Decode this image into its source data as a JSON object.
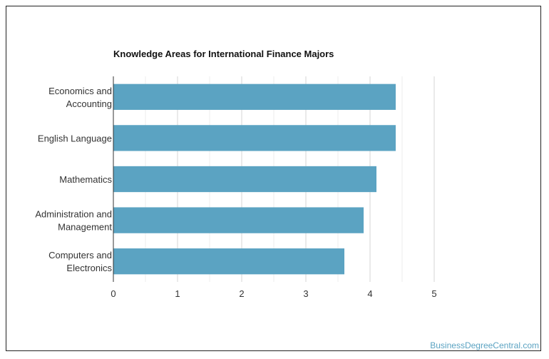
{
  "chart_data": {
    "type": "bar",
    "orientation": "horizontal",
    "title": "Knowledge Areas for International Finance Majors",
    "categories": [
      [
        "Economics and",
        "Accounting"
      ],
      [
        "English Language"
      ],
      [
        "Mathematics"
      ],
      [
        "Administration and",
        "Management"
      ],
      [
        "Computers and",
        "Electronics"
      ]
    ],
    "values": [
      4.4,
      4.4,
      4.1,
      3.9,
      3.6
    ],
    "xlim": [
      0,
      5
    ],
    "xticks": [
      0,
      1,
      2,
      3,
      4,
      5
    ],
    "grid": true,
    "bar_color": "#5ba3c2",
    "xlabel": "",
    "ylabel": ""
  },
  "watermark": "BusinessDegreeCentral.com"
}
